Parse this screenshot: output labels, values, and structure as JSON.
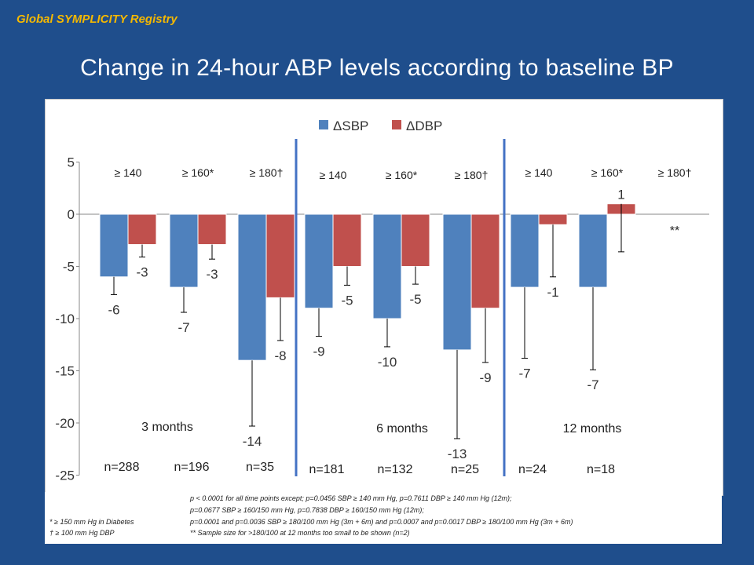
{
  "header": {
    "registry_label": "Global SYMPLICITY Registry",
    "title": "Change in 24-hour ABP levels according to baseline BP"
  },
  "colors": {
    "background": "#1f4e8c",
    "sbp": "#4f81bd",
    "dbp": "#c0504d",
    "registry": "#f5b800"
  },
  "chart_data": {
    "type": "bar",
    "legend": [
      "ΔSBP",
      "ΔDBP"
    ],
    "legend_position": "top",
    "ylim": [
      -25,
      5
    ],
    "yticks": [
      5,
      0,
      -5,
      -10,
      -15,
      -20,
      -25
    ],
    "ytick_labels": [
      "5",
      "0",
      "-5",
      "-10",
      "-15",
      "-20",
      "-25"
    ],
    "grid": false,
    "groups": [
      {
        "period": "3 months",
        "categories": [
          {
            "threshold": "≥ 140",
            "n": "n=288",
            "sbp": -6,
            "sbp_err": [
              -7.7,
              -6
            ],
            "dbp": -2.9,
            "dbp_err": [
              -4.1,
              -2.9
            ],
            "sbp_label": "-6",
            "dbp_label": "-3"
          },
          {
            "threshold": "≥ 160*",
            "n": "n=196",
            "sbp": -7,
            "sbp_err": [
              -9.4,
              -7
            ],
            "dbp": -2.9,
            "dbp_err": [
              -4.3,
              -2.9
            ],
            "sbp_label": "-7",
            "dbp_label": "-3"
          },
          {
            "threshold": "≥ 180†",
            "n": "n=35",
            "sbp": -14,
            "sbp_err": [
              -20.3,
              -14
            ],
            "dbp": -8,
            "dbp_err": [
              -12.1,
              -8
            ],
            "sbp_label": "-14",
            "dbp_label": "-8"
          }
        ]
      },
      {
        "period": "6 months",
        "categories": [
          {
            "threshold": "≥ 140",
            "n": "n=181",
            "sbp": -9,
            "sbp_err": [
              -11.7,
              -9
            ],
            "dbp": -5,
            "dbp_err": [
              -6.8,
              -5
            ],
            "sbp_label": "-9",
            "dbp_label": "-5"
          },
          {
            "threshold": "≥ 160*",
            "n": "n=132",
            "sbp": -10,
            "sbp_err": [
              -12.7,
              -10
            ],
            "dbp": -5,
            "dbp_err": [
              -6.7,
              -5
            ],
            "sbp_label": "-10",
            "dbp_label": "-5"
          },
          {
            "threshold": "≥ 180†",
            "n": "n=25",
            "sbp": -13,
            "sbp_err": [
              -21.5,
              -13
            ],
            "dbp": -9,
            "dbp_err": [
              -14.2,
              -9
            ],
            "sbp_label": "-13",
            "dbp_label": "-9"
          }
        ]
      },
      {
        "period": "12 months",
        "categories": [
          {
            "threshold": "≥ 140",
            "n": "n=24",
            "sbp": -7,
            "sbp_err": [
              -13.8,
              -7
            ],
            "dbp": -1,
            "dbp_err": [
              -6,
              -1
            ],
            "sbp_label": "-7",
            "dbp_label": "-1"
          },
          {
            "threshold": "≥ 160*",
            "n": "n=18",
            "sbp": -7,
            "sbp_err": [
              -14.9,
              -7
            ],
            "dbp": 1,
            "dbp_err": [
              -3.6,
              1
            ],
            "sbp_label": "-7",
            "dbp_label": "1"
          },
          {
            "threshold": "≥ 180†",
            "n": "",
            "sbp": null,
            "dbp": null,
            "note": "**"
          }
        ]
      }
    ]
  },
  "footnotes": {
    "left": [
      "* ≥ 150 mm Hg in Diabetes",
      "† ≥ 100 mm Hg DBP"
    ],
    "right": [
      "p < 0.0001 for all time points except; p=0.0456 SBP ≥ 140 mm Hg, p=0.7611 DBP ≥ 140 mm Hg (12m);",
      "p=0.0677 SBP ≥ 160/150 mm Hg, p=0.7838 DBP ≥ 160/150 mm Hg (12m);",
      "p=0.0001 and p=0.0036 SBP ≥ 180/100 mm Hg (3m + 6m) and p=0.0007 and p=0.0017 DBP ≥ 180/100 mm Hg (3m + 6m)",
      "** Sample size for >180/100 at 12 months too small to be shown (n=2)"
    ]
  }
}
